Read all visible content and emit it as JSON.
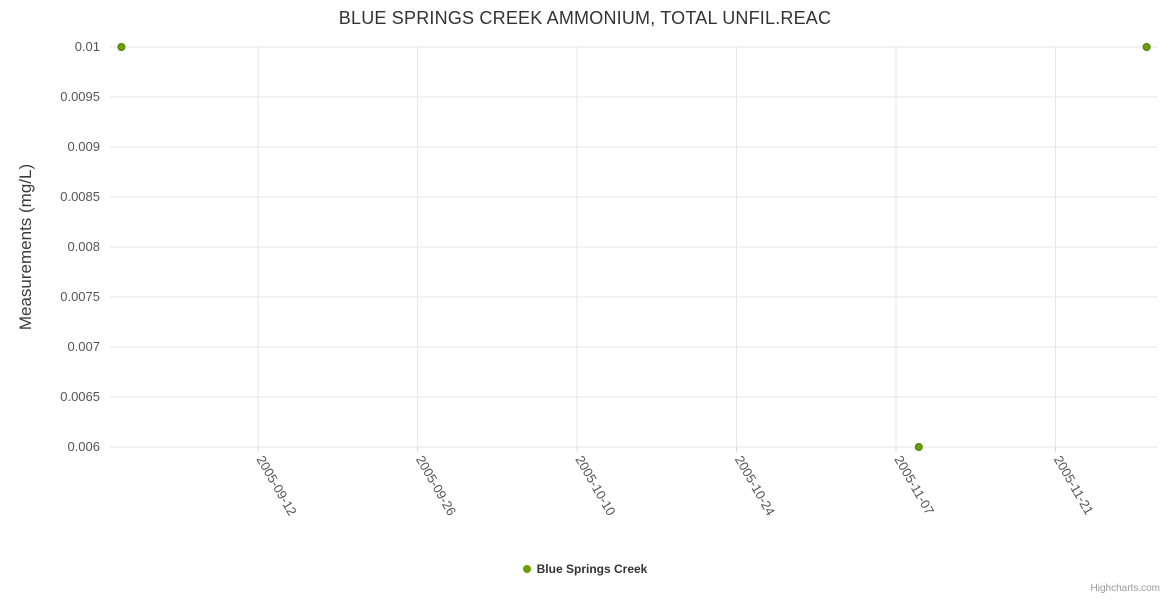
{
  "chart_data": {
    "type": "scatter",
    "title": "BLUE SPRINGS CREEK AMMONIUM, TOTAL UNFIL.REAC",
    "ylabel": "Measurements (mg/L)",
    "xlabel": "",
    "ylim": [
      0.006,
      0.01
    ],
    "x_range": [
      "2005-08-30",
      "2005-11-30"
    ],
    "grid": true,
    "legend_position": "bottom-center",
    "credits": "Highcharts.com",
    "x_ticks": [
      "2005-09-12",
      "2005-09-26",
      "2005-10-10",
      "2005-10-24",
      "2005-11-07",
      "2005-11-21"
    ],
    "y_ticks": [
      {
        "value": 0.01,
        "label": "0.01"
      },
      {
        "value": 0.0095,
        "label": "0.0095"
      },
      {
        "value": 0.009,
        "label": "0.009"
      },
      {
        "value": 0.0085,
        "label": "0.0085"
      },
      {
        "value": 0.008,
        "label": "0.008"
      },
      {
        "value": 0.0075,
        "label": "0.0075"
      },
      {
        "value": 0.007,
        "label": "0.007"
      },
      {
        "value": 0.0065,
        "label": "0.0065"
      },
      {
        "value": 0.006,
        "label": "0.006"
      }
    ],
    "series": [
      {
        "name": "Blue Springs Creek",
        "color": "#69a000",
        "border_color": "#4f7a00",
        "points": [
          {
            "date": "2005-08-31",
            "value": 0.01
          },
          {
            "date": "2005-11-09",
            "value": 0.006
          },
          {
            "date": "2005-11-29",
            "value": 0.01
          }
        ]
      }
    ],
    "colors": {
      "grid": "#e6e6e6",
      "tick": "#d8d8d8",
      "axis_label_text": "#555555",
      "title_text": "#333333",
      "axis_title_text": "#3c3c3c",
      "legend_text": "#333333",
      "credits_text": "#999999"
    }
  }
}
